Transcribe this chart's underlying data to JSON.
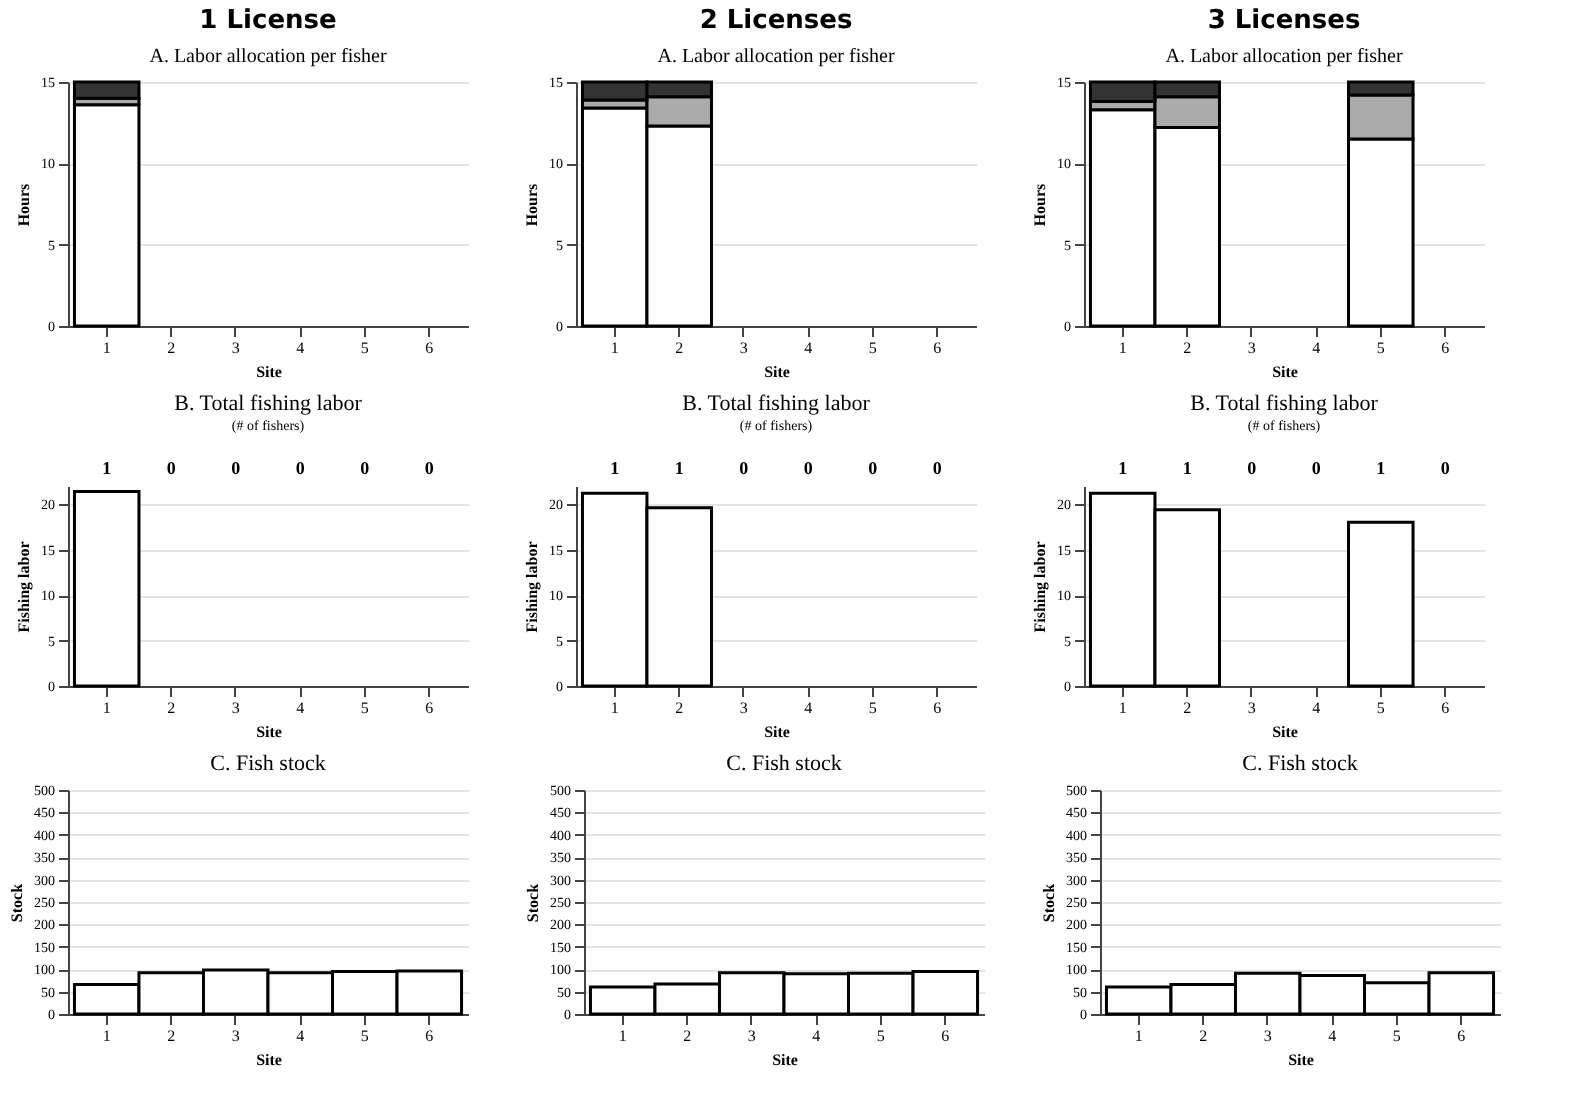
{
  "chart_data": [
    {
      "type": "bar",
      "title": "1 License",
      "subtitle": "A. Labor allocation per fisher",
      "xlabel": "Site",
      "ylabel": "Hours",
      "categories": [
        "1",
        "2",
        "3",
        "4",
        "5",
        "6"
      ],
      "stacked": true,
      "ylim": [
        0,
        15
      ],
      "yticks": [
        0,
        5,
        10,
        15
      ],
      "grid": "y",
      "series": [
        {
          "color": "#ffffff",
          "values": [
            13.6,
            null,
            null,
            null,
            null,
            null
          ]
        },
        {
          "color": "#aaaaaa",
          "values": [
            0.4,
            null,
            null,
            null,
            null,
            null
          ]
        },
        {
          "color": "#333333",
          "values": [
            1.0,
            null,
            null,
            null,
            null,
            null
          ]
        }
      ]
    },
    {
      "type": "bar",
      "title": "2 Licenses",
      "subtitle": "A. Labor allocation per fisher",
      "xlabel": "Site",
      "ylabel": "Hours",
      "categories": [
        "1",
        "2",
        "3",
        "4",
        "5",
        "6"
      ],
      "stacked": true,
      "ylim": [
        0,
        15
      ],
      "yticks": [
        0,
        5,
        10,
        15
      ],
      "grid": "y",
      "series": [
        {
          "color": "#ffffff",
          "values": [
            13.4,
            12.3,
            null,
            null,
            null,
            null
          ]
        },
        {
          "color": "#aaaaaa",
          "values": [
            0.5,
            1.8,
            null,
            null,
            null,
            null
          ]
        },
        {
          "color": "#333333",
          "values": [
            1.1,
            0.9,
            null,
            null,
            null,
            null
          ]
        }
      ]
    },
    {
      "type": "bar",
      "title": "3 Licenses",
      "subtitle": "A. Labor allocation per fisher",
      "xlabel": "Site",
      "ylabel": "Hours",
      "categories": [
        "1",
        "2",
        "3",
        "4",
        "5",
        "6"
      ],
      "stacked": true,
      "ylim": [
        0,
        15
      ],
      "yticks": [
        0,
        5,
        10,
        15
      ],
      "grid": "y",
      "series": [
        {
          "color": "#ffffff",
          "values": [
            13.3,
            12.2,
            null,
            null,
            11.5,
            null
          ]
        },
        {
          "color": "#aaaaaa",
          "values": [
            0.5,
            1.9,
            null,
            null,
            2.7,
            null
          ]
        },
        {
          "color": "#333333",
          "values": [
            1.2,
            0.9,
            null,
            null,
            0.8,
            null
          ]
        }
      ]
    },
    {
      "type": "bar",
      "title": "B. Total fishing labor",
      "subtitle": "(# of fishers)",
      "xlabel": "Site",
      "ylabel": "Fishing labor",
      "categories": [
        "1",
        "2",
        "3",
        "4",
        "5",
        "6"
      ],
      "ylim": [
        0,
        22
      ],
      "yticks": [
        0,
        5,
        10,
        15,
        20
      ],
      "grid": "y",
      "color": "#ffffff",
      "values": [
        21.4,
        null,
        null,
        null,
        null,
        null
      ],
      "annotations": [
        "1",
        "0",
        "0",
        "0",
        "0",
        "0"
      ]
    },
    {
      "type": "bar",
      "title": "B. Total fishing labor",
      "subtitle": "(# of fishers)",
      "xlabel": "Site",
      "ylabel": "Fishing labor",
      "categories": [
        "1",
        "2",
        "3",
        "4",
        "5",
        "6"
      ],
      "ylim": [
        0,
        22
      ],
      "yticks": [
        0,
        5,
        10,
        15,
        20
      ],
      "grid": "y",
      "color": "#ffffff",
      "values": [
        21.2,
        19.6,
        null,
        null,
        null,
        null
      ],
      "annotations": [
        "1",
        "1",
        "0",
        "0",
        "0",
        "0"
      ]
    },
    {
      "type": "bar",
      "title": "B. Total fishing labor",
      "subtitle": "(# of fishers)",
      "xlabel": "Site",
      "ylabel": "Fishing labor",
      "categories": [
        "1",
        "2",
        "3",
        "4",
        "5",
        "6"
      ],
      "ylim": [
        0,
        22
      ],
      "yticks": [
        0,
        5,
        10,
        15,
        20
      ],
      "grid": "y",
      "color": "#ffffff",
      "values": [
        21.2,
        19.4,
        null,
        null,
        18.0,
        null
      ],
      "annotations": [
        "1",
        "1",
        "0",
        "0",
        "1",
        "0"
      ]
    },
    {
      "type": "bar",
      "title": "C. Fish stock",
      "xlabel": "Site",
      "ylabel": "Stock",
      "categories": [
        "1",
        "2",
        "3",
        "4",
        "5",
        "6"
      ],
      "ylim": [
        0,
        500
      ],
      "yticks": [
        0,
        50,
        100,
        150,
        200,
        250,
        300,
        350,
        400,
        450,
        500
      ],
      "grid": "y",
      "color": "#ffffff",
      "values": [
        66,
        92,
        98,
        92,
        95,
        96
      ]
    },
    {
      "type": "bar",
      "title": "C. Fish stock",
      "xlabel": "Site",
      "ylabel": "Stock",
      "categories": [
        "1",
        "2",
        "3",
        "4",
        "5",
        "6"
      ],
      "ylim": [
        0,
        500
      ],
      "yticks": [
        0,
        50,
        100,
        150,
        200,
        250,
        300,
        350,
        400,
        450,
        500
      ],
      "grid": "y",
      "color": "#ffffff",
      "values": [
        60,
        67,
        92,
        90,
        91,
        95
      ]
    },
    {
      "type": "bar",
      "title": "C. Fish stock",
      "xlabel": "Site",
      "ylabel": "Stock",
      "categories": [
        "1",
        "2",
        "3",
        "4",
        "5",
        "6"
      ],
      "ylim": [
        0,
        500
      ],
      "yticks": [
        0,
        50,
        100,
        150,
        200,
        250,
        300,
        350,
        400,
        450,
        500
      ],
      "grid": "y",
      "color": "#ffffff",
      "values": [
        60,
        66,
        91,
        86,
        70,
        92
      ]
    }
  ]
}
